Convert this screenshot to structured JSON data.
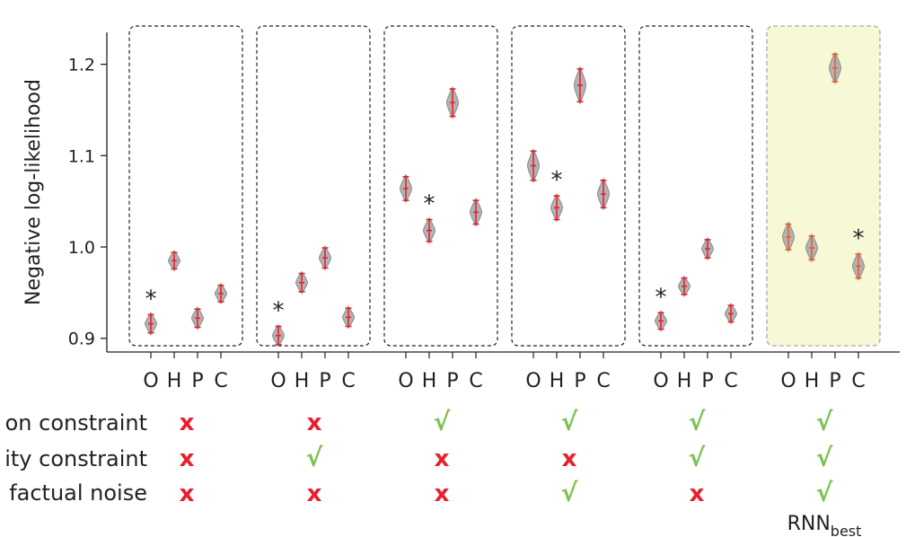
{
  "chart_data": {
    "type": "violin",
    "ylabel": "Negative log-likelihood",
    "ylim": [
      0.885,
      1.235
    ],
    "yticks": [
      0.9,
      1.0,
      1.1,
      1.2
    ],
    "ytick_labels": [
      "0.9",
      "1.0",
      "1.1",
      "1.2"
    ],
    "categories": [
      "O",
      "H",
      "P",
      "C"
    ],
    "row_labels": [
      "on constraint",
      "ity constraint",
      "factual noise"
    ],
    "colors": {
      "violin_fill": "#b3b3b3",
      "violin_stroke": "#8a8a8a",
      "error_red": "#e8202e",
      "error_orange": "#e8602c",
      "highlight_fill": "#f6f8d6",
      "highlight_border": "#b8b8b8",
      "check_green": "#7cc24e",
      "cross_red": "#e8202e"
    },
    "groups": [
      {
        "values": [
          0.916,
          0.985,
          0.922,
          0.949
        ],
        "spreads": [
          0.01,
          0.009,
          0.01,
          0.009
        ],
        "best_index": 0,
        "best_marker": "*",
        "constraints": [
          "x",
          "x",
          "x"
        ],
        "label": "",
        "highlight": false
      },
      {
        "values": [
          0.903,
          0.961,
          0.988,
          0.923
        ],
        "spreads": [
          0.01,
          0.01,
          0.011,
          0.01
        ],
        "best_index": 0,
        "best_marker": "*",
        "constraints": [
          "x",
          "check",
          "x"
        ],
        "label": "",
        "highlight": false
      },
      {
        "values": [
          1.064,
          1.018,
          1.158,
          1.038
        ],
        "spreads": [
          0.013,
          0.012,
          0.015,
          0.013
        ],
        "best_index": 1,
        "best_marker": "*",
        "constraints": [
          "check",
          "x",
          "x"
        ],
        "label": "",
        "highlight": false
      },
      {
        "values": [
          1.089,
          1.043,
          1.177,
          1.058
        ],
        "spreads": [
          0.016,
          0.013,
          0.018,
          0.015
        ],
        "best_index": 1,
        "best_marker": "*",
        "constraints": [
          "check",
          "x",
          "check"
        ],
        "label": "",
        "highlight": false
      },
      {
        "values": [
          0.919,
          0.957,
          0.998,
          0.927
        ],
        "spreads": [
          0.009,
          0.009,
          0.01,
          0.009
        ],
        "best_index": 0,
        "best_marker": "*",
        "constraints": [
          "check",
          "check",
          "x"
        ],
        "label": "",
        "highlight": false
      },
      {
        "values": [
          1.011,
          0.999,
          1.196,
          0.979
        ],
        "spreads": [
          0.014,
          0.013,
          0.015,
          0.013
        ],
        "best_index": 3,
        "best_marker": "*",
        "constraints": [
          "check",
          "check",
          "check"
        ],
        "label": "RNN",
        "label_sub": "best",
        "highlight": true
      }
    ]
  },
  "symbols": {
    "check": "√",
    "x": "x"
  }
}
